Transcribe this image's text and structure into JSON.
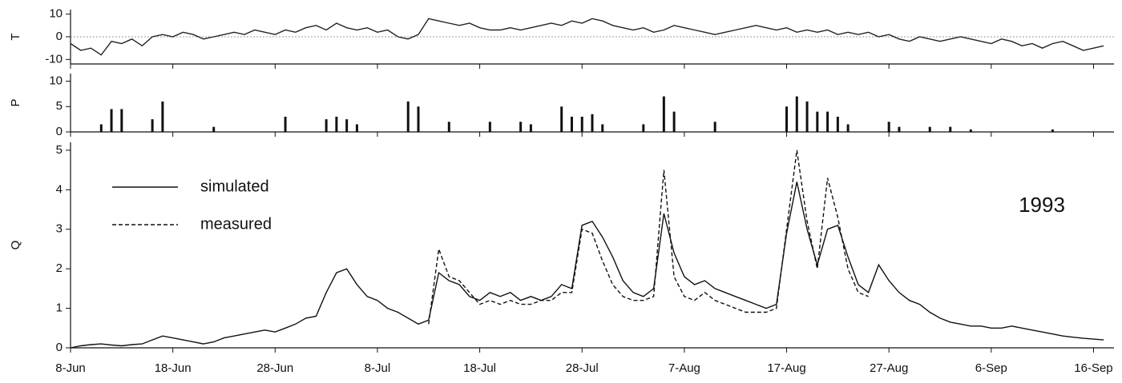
{
  "chart_data": [
    {
      "type": "line",
      "ylabel": "T",
      "color": "#222",
      "reference_line": 0,
      "x": [
        0,
        1,
        2,
        3,
        4,
        5,
        6,
        7,
        8,
        9,
        10,
        11,
        12,
        13,
        14,
        15,
        16,
        17,
        18,
        19,
        20,
        21,
        22,
        23,
        24,
        25,
        26,
        27,
        28,
        29,
        30,
        31,
        32,
        33,
        34,
        35,
        36,
        37,
        38,
        39,
        40,
        41,
        42,
        43,
        44,
        45,
        46,
        47,
        48,
        49,
        50,
        51,
        52,
        53,
        54,
        55,
        56,
        57,
        58,
        59,
        60,
        61,
        62,
        63,
        64,
        65,
        66,
        67,
        68,
        69,
        70,
        71,
        72,
        73,
        74,
        75,
        76,
        77,
        78,
        79,
        80,
        81,
        82,
        83,
        84,
        85,
        86,
        87,
        88,
        89,
        90,
        91,
        92,
        93,
        94,
        95,
        96,
        97,
        98,
        99,
        100,
        101
      ],
      "values": [
        -3,
        -6,
        -5,
        -8,
        -2,
        -3,
        -1,
        -4,
        0,
        1,
        0,
        2,
        1,
        -1,
        0,
        1,
        2,
        1,
        3,
        2,
        1,
        3,
        2,
        4,
        5,
        3,
        6,
        4,
        3,
        4,
        2,
        3,
        0,
        -1,
        1,
        8,
        7,
        6,
        5,
        6,
        4,
        3,
        3,
        4,
        3,
        4,
        5,
        6,
        5,
        7,
        6,
        8,
        7,
        5,
        4,
        3,
        4,
        2,
        3,
        5,
        4,
        3,
        2,
        1,
        2,
        3,
        4,
        5,
        4,
        3,
        4,
        2,
        3,
        2,
        3,
        1,
        2,
        1,
        2,
        0,
        1,
        -1,
        -2,
        0,
        -1,
        -2,
        -1,
        0,
        -1,
        -2,
        -3,
        -1,
        -2,
        -4,
        -3,
        -5,
        -3,
        -2,
        -4,
        -6,
        -5,
        -4
      ],
      "xlim": [
        0,
        102
      ],
      "ylim": [
        -12,
        12
      ],
      "yticks": [
        -10,
        0,
        10
      ]
    },
    {
      "type": "bar",
      "ylabel": "P",
      "color": "#111",
      "x": [
        3,
        4,
        5,
        8,
        9,
        14,
        21,
        25,
        26,
        27,
        28,
        33,
        34,
        37,
        41,
        44,
        45,
        48,
        49,
        50,
        51,
        52,
        56,
        58,
        59,
        63,
        70,
        71,
        72,
        73,
        74,
        75,
        76,
        80,
        81,
        84,
        86,
        88,
        96
      ],
      "values": [
        1.5,
        4.5,
        4.5,
        2.5,
        6,
        1,
        3,
        2.5,
        3,
        2.5,
        1.5,
        6,
        5,
        2,
        2,
        2,
        1.5,
        5,
        3,
        3,
        3.5,
        1.5,
        1.5,
        7,
        4,
        2,
        5,
        7,
        6,
        4,
        4,
        3,
        1.5,
        2,
        1,
        1,
        1,
        0.5,
        0.5
      ],
      "xlim": [
        0,
        102
      ],
      "ylim": [
        0,
        11.5
      ],
      "yticks": [
        0,
        5,
        10
      ]
    },
    {
      "type": "line",
      "ylabel": "Q",
      "annotation": "1993",
      "legend": "upper left",
      "x": [
        0,
        1,
        2,
        3,
        4,
        5,
        6,
        7,
        8,
        9,
        10,
        11,
        12,
        13,
        14,
        15,
        16,
        17,
        18,
        19,
        20,
        21,
        22,
        23,
        24,
        25,
        26,
        27,
        28,
        29,
        30,
        31,
        32,
        33,
        34,
        35,
        36,
        37,
        38,
        39,
        40,
        41,
        42,
        43,
        44,
        45,
        46,
        47,
        48,
        49,
        50,
        51,
        52,
        53,
        54,
        55,
        56,
        57,
        58,
        59,
        60,
        61,
        62,
        63,
        64,
        65,
        66,
        67,
        68,
        69,
        70,
        71,
        72,
        73,
        74,
        75,
        76,
        77,
        78,
        79,
        80,
        81,
        82,
        83,
        84,
        85,
        86,
        87,
        88,
        89,
        90,
        91,
        92,
        93,
        94,
        95,
        96,
        97,
        98,
        99,
        100,
        101
      ],
      "series": [
        {
          "name": "simulated",
          "color": "#111",
          "dash": "none",
          "values": [
            0,
            0.05,
            0.08,
            0.1,
            0.07,
            0.05,
            0.08,
            0.1,
            0.2,
            0.3,
            0.25,
            0.2,
            0.15,
            0.1,
            0.15,
            0.25,
            0.3,
            0.35,
            0.4,
            0.45,
            0.4,
            0.5,
            0.6,
            0.75,
            0.8,
            1.4,
            1.9,
            2.0,
            1.6,
            1.3,
            1.2,
            1.0,
            0.9,
            0.75,
            0.6,
            0.7,
            1.9,
            1.7,
            1.6,
            1.3,
            1.2,
            1.4,
            1.3,
            1.4,
            1.2,
            1.3,
            1.2,
            1.3,
            1.6,
            1.5,
            3.1,
            3.2,
            2.8,
            2.3,
            1.7,
            1.4,
            1.3,
            1.5,
            3.4,
            2.4,
            1.8,
            1.6,
            1.7,
            1.5,
            1.4,
            1.3,
            1.2,
            1.1,
            1.0,
            1.1,
            2.9,
            4.2,
            3.0,
            2.1,
            3.0,
            3.1,
            2.3,
            1.6,
            1.4,
            2.1,
            1.7,
            1.4,
            1.2,
            1.1,
            0.9,
            0.75,
            0.65,
            0.6,
            0.55,
            0.55,
            0.5,
            0.5,
            0.55,
            0.5,
            0.45,
            0.4,
            0.35,
            0.3,
            0.27,
            0.24,
            0.22,
            0.2
          ]
        },
        {
          "name": "measured",
          "color": "#111",
          "dash": "5,3",
          "values": [
            null,
            null,
            null,
            null,
            null,
            null,
            null,
            null,
            null,
            null,
            null,
            null,
            null,
            null,
            null,
            null,
            null,
            null,
            null,
            null,
            null,
            null,
            null,
            null,
            null,
            null,
            null,
            null,
            null,
            null,
            null,
            null,
            null,
            null,
            null,
            0.6,
            2.5,
            1.8,
            1.7,
            1.4,
            1.1,
            1.2,
            1.1,
            1.2,
            1.1,
            1.1,
            1.2,
            1.2,
            1.4,
            1.4,
            3.0,
            2.9,
            2.2,
            1.6,
            1.3,
            1.2,
            1.2,
            1.3,
            4.5,
            1.8,
            1.3,
            1.2,
            1.4,
            1.2,
            1.1,
            1.0,
            0.9,
            0.9,
            0.9,
            1.0,
            3.0,
            5.0,
            3.2,
            2.0,
            4.3,
            3.3,
            2.0,
            1.4,
            1.3,
            null,
            null,
            null,
            null,
            null,
            null,
            null,
            null,
            null,
            null,
            null,
            null,
            null,
            null,
            null,
            null,
            null,
            null,
            null,
            null,
            null,
            null,
            null
          ]
        }
      ],
      "xlim": [
        0,
        102
      ],
      "ylim": [
        0,
        5.2
      ],
      "yticks": [
        0,
        1,
        2,
        3,
        4,
        5
      ],
      "xticks": [
        {
          "value": 0,
          "label": "8-Jun"
        },
        {
          "value": 10,
          "label": "18-Jun"
        },
        {
          "value": 20,
          "label": "28-Jun"
        },
        {
          "value": 30,
          "label": "8-Jul"
        },
        {
          "value": 40,
          "label": "18-Jul"
        },
        {
          "value": 50,
          "label": "28-Jul"
        },
        {
          "value": 60,
          "label": "7-Aug"
        },
        {
          "value": 70,
          "label": "17-Aug"
        },
        {
          "value": 80,
          "label": "27-Aug"
        },
        {
          "value": 90,
          "label": "6-Sep"
        },
        {
          "value": 100,
          "label": "16-Sep"
        }
      ]
    }
  ]
}
